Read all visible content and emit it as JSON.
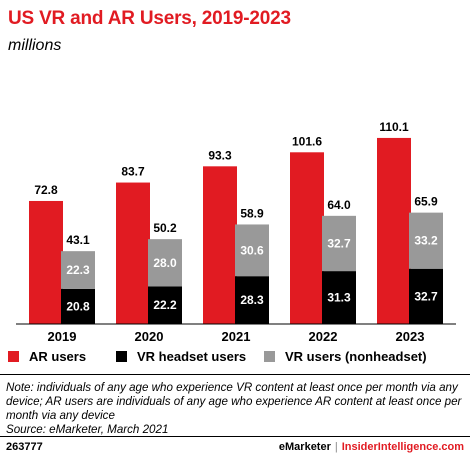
{
  "title": "US VR and AR Users, 2019-2023",
  "subtitle": "millions",
  "colors": {
    "ar": "#e11b22",
    "vr_headset": "#000000",
    "vr_nonheadset": "#999999",
    "title": "#e11b22"
  },
  "chart_data": {
    "type": "bar",
    "categories": [
      "2019",
      "2020",
      "2021",
      "2022",
      "2023"
    ],
    "series": [
      {
        "name": "AR users",
        "values": [
          72.8,
          83.7,
          93.3,
          101.6,
          110.1
        ]
      },
      {
        "name": "VR headset users",
        "values": [
          20.8,
          22.2,
          28.3,
          31.3,
          32.7
        ],
        "stack": "VR"
      },
      {
        "name": "VR users (nonheadset)",
        "values": [
          22.3,
          28.0,
          30.6,
          32.7,
          33.2
        ],
        "stack": "VR"
      }
    ],
    "vr_totals": [
      43.1,
      50.2,
      58.9,
      64.0,
      65.9
    ],
    "ylim": [
      0,
      115
    ],
    "grid": false,
    "legend": "bottom"
  },
  "legend": {
    "ar": "AR users",
    "vr_headset": "VR headset users",
    "vr_nonheadset": "VR users (nonheadset)"
  },
  "note_lines": [
    "Note: individuals of any age who experience VR content at least once per month via any",
    "device; AR users are individuals of any age who experience AR content at least once per",
    "month via any device",
    "Source: eMarketer, March 2021"
  ],
  "footer": {
    "figure_id": "263777",
    "brand_left": "eMarketer",
    "separator": "|",
    "brand_right": "InsiderIntelligence.com"
  }
}
